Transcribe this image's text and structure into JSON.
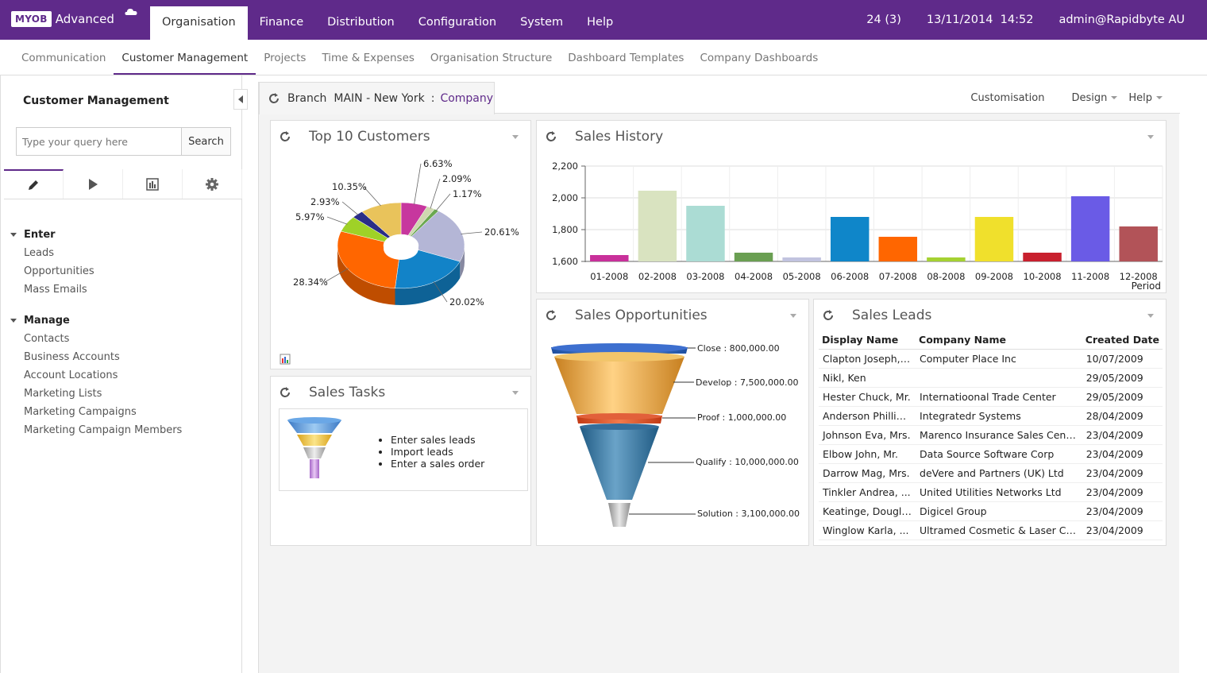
{
  "app": {
    "logo_brand": "MYOB",
    "logo_product": "Advanced"
  },
  "topnav": {
    "items": [
      "Organisation",
      "Finance",
      "Distribution",
      "Configuration",
      "System",
      "Help"
    ],
    "notifications": "24 (3)",
    "datetime": "13/11/2014  14:52",
    "user": "admin@Rapidbyte AU"
  },
  "subnav": {
    "items": [
      "Communication",
      "Customer Management",
      "Projects",
      "Time & Expenses",
      "Organisation Structure",
      "Dashboard Templates",
      "Company Dashboards"
    ]
  },
  "sidebar": {
    "title": "Customer Management",
    "search_placeholder": "Type your query here",
    "search_button": "Search",
    "groups": [
      {
        "label": "Enter",
        "items": [
          "Leads",
          "Opportunities",
          "Mass Emails"
        ]
      },
      {
        "label": "Manage",
        "items": [
          "Contacts",
          "Business Accounts",
          "Account Locations",
          "Marketing Lists",
          "Marketing Campaigns",
          "Marketing Campaign Members"
        ]
      }
    ]
  },
  "header": {
    "branch_label": "Branch",
    "branch_value": "MAIN - New York",
    "separator": ":",
    "company": "Company",
    "customisation": "Customisation",
    "design": "Design",
    "help": "Help"
  },
  "widgets": {
    "top_customers": {
      "title": "Top 10 Customers"
    },
    "sales_history": {
      "title": "Sales History"
    },
    "sales_tasks": {
      "title": "Sales Tasks",
      "items": [
        "Enter sales leads",
        "Import leads",
        "Enter a sales order"
      ]
    },
    "sales_opportunities": {
      "title": "Sales Opportunities"
    },
    "sales_leads": {
      "title": "Sales Leads",
      "columns": [
        "Display Name",
        "Company Name",
        "Created Date"
      ],
      "rows": [
        [
          "Clapton Joseph, ...",
          "Computer Place Inc",
          "10/07/2009"
        ],
        [
          "Nikl, Ken",
          "",
          "29/05/2009"
        ],
        [
          "Hester Chuck, Mr.",
          "Internatioonal Trade Center",
          "29/05/2009"
        ],
        [
          "Anderson Phillip,...",
          "Integratedr Systems",
          "28/04/2009"
        ],
        [
          "Johnson Eva, Mrs.",
          "Marenco Insurance Sales Center",
          "23/04/2009"
        ],
        [
          "Elbow John, Mr.",
          "Data Source Software Corp",
          "23/04/2009"
        ],
        [
          "Darrow Mag, Mrs.",
          "deVere and Partners (UK) Ltd",
          "23/04/2009"
        ],
        [
          "Tinkler Andrea, ...",
          "United Utilities Networks Ltd",
          "23/04/2009"
        ],
        [
          "Keatinge, Douglas",
          "Digicel Group",
          "23/04/2009"
        ],
        [
          "Winglow Karla, ...",
          "Ultramed Cosmetic & Laser Centr...",
          "23/04/2009"
        ]
      ]
    }
  },
  "chart_data": [
    {
      "type": "pie",
      "title": "Top 10 Customers",
      "values": [
        6.63,
        2.09,
        1.17,
        20.61,
        20.02,
        28.34,
        5.97,
        2.93,
        10.35
      ],
      "labels": [
        "6.63%",
        "2.09%",
        "1.17%",
        "20.61%",
        "20.02%",
        "28.34%",
        "5.97%",
        "2.93%",
        "10.35%"
      ],
      "colors": [
        "#c7379e",
        "#cfd8b0",
        "#6aa84f",
        "#b4b6d6",
        "#1283c8",
        "#ff6600",
        "#9fd127",
        "#2a2d87",
        "#e9c35b"
      ]
    },
    {
      "type": "bar",
      "title": "Sales History",
      "categories": [
        "01-2008",
        "02-2008",
        "03-2008",
        "04-2008",
        "05-2008",
        "06-2008",
        "07-2008",
        "08-2008",
        "09-2008",
        "10-2008",
        "11-2008",
        "12-2008"
      ],
      "values": [
        1640,
        2045,
        1950,
        1655,
        1625,
        1880,
        1755,
        1625,
        1880,
        1655,
        2010,
        1820
      ],
      "colors": [
        "#c8309a",
        "#d9e3c0",
        "#abdcd4",
        "#6a9f52",
        "#c1c3df",
        "#0f86c9",
        "#ff6600",
        "#a5d132",
        "#f0e02c",
        "#c8202e",
        "#6a5be6",
        "#b25358"
      ],
      "xlabel": "Period",
      "ylabel": "",
      "yticks": [
        "1,600",
        "1,800",
        "2,000",
        "2,200"
      ],
      "ylim": [
        1600,
        2200
      ]
    },
    {
      "type": "funnel",
      "title": "Sales Opportunities",
      "stages": [
        {
          "name": "Close",
          "value": 800000,
          "label": "Close : 800,000.00"
        },
        {
          "name": "Develop",
          "value": 7500000,
          "label": "Develop : 7,500,000.00"
        },
        {
          "name": "Proof",
          "value": 1000000,
          "label": "Proof : 1,000,000.00"
        },
        {
          "name": "Qualify",
          "value": 10000000,
          "label": "Qualify : 10,000,000.00"
        },
        {
          "name": "Solution",
          "value": 3100000,
          "label": "Solution : 3,100,000.00"
        }
      ]
    }
  ]
}
